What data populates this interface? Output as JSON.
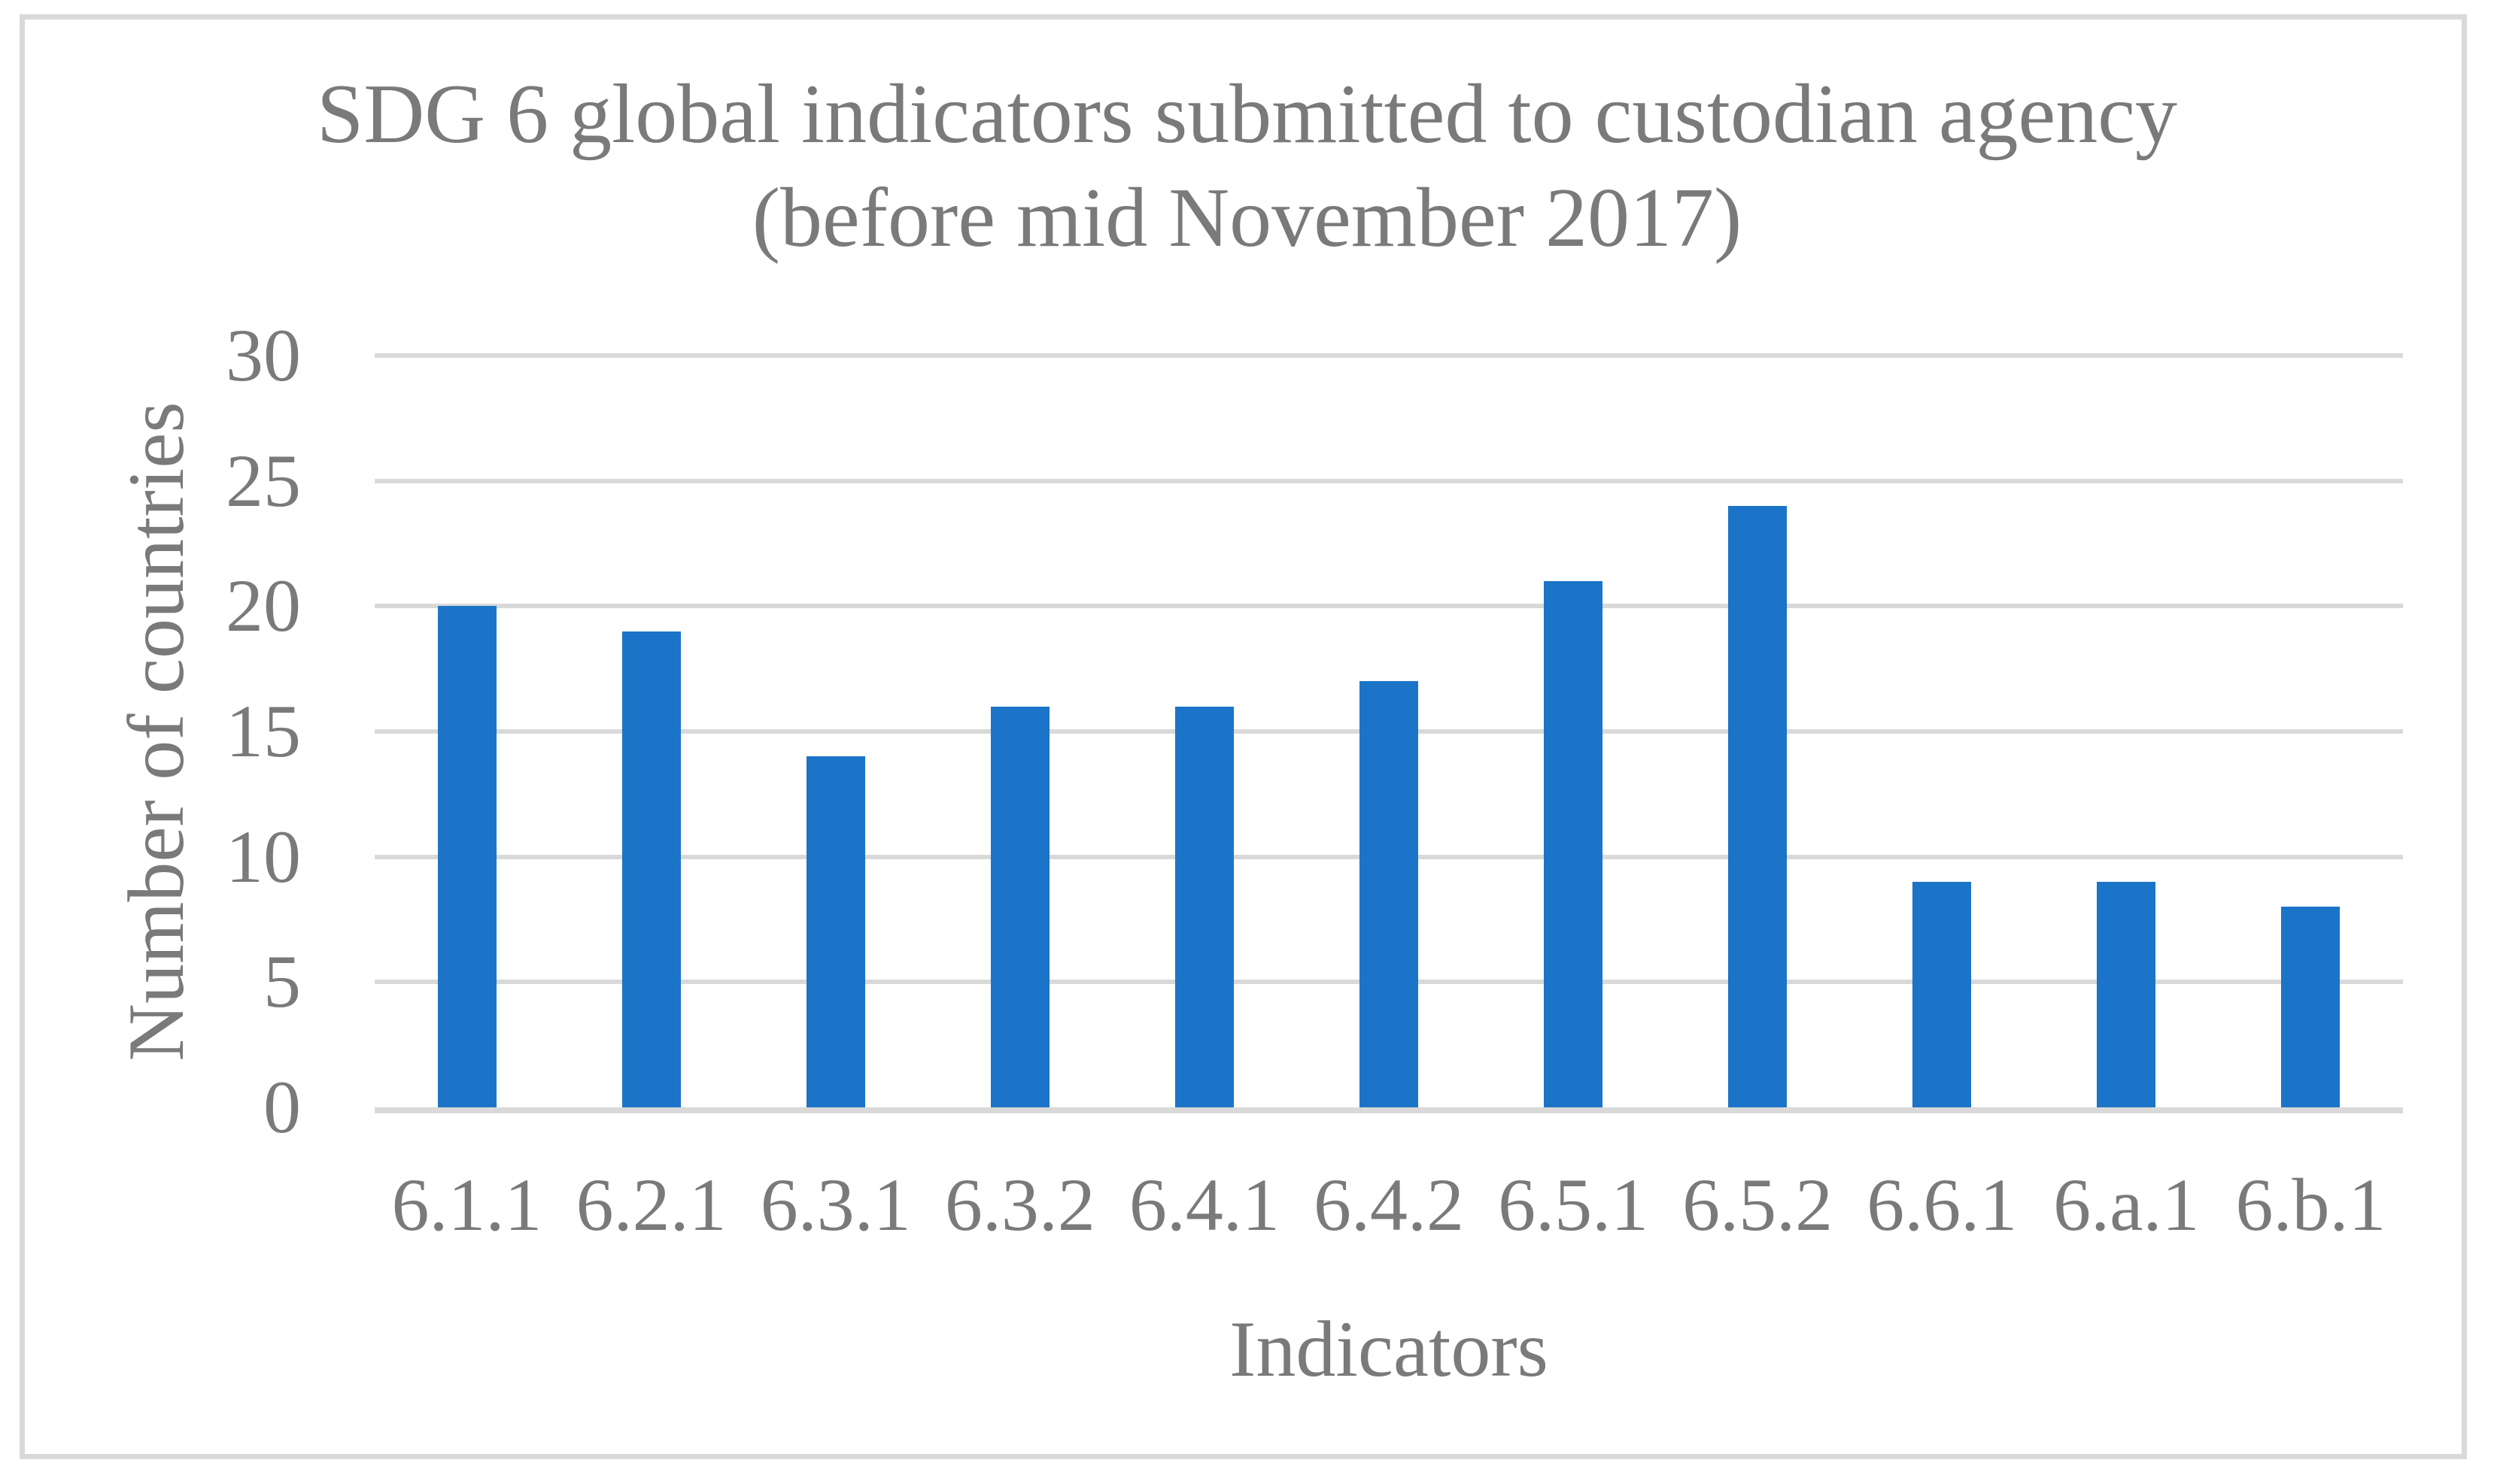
{
  "chart_data": {
    "type": "bar",
    "title": "SDG 6 global indicators submitted to custodian agency (before mid November 2017)",
    "title_lines": [
      "SDG 6 global indicators submitted to custodian agency",
      "(before mid November 2017)"
    ],
    "categories": [
      "6.1.1",
      "6.2.1",
      "6.3.1",
      "6.3.2",
      "6.4.1",
      "6.4.2",
      "6.5.1",
      "6.5.2",
      "6.6.1",
      "6.a.1",
      "6.b.1"
    ],
    "values": [
      20,
      19,
      14,
      16,
      16,
      17,
      21,
      24,
      9,
      9,
      8
    ],
    "xlabel": "Indicators",
    "ylabel": "Number of countries",
    "ylim": [
      0,
      30
    ],
    "yticks": [
      0,
      5,
      10,
      15,
      20,
      25,
      30
    ],
    "grid": "horizontal",
    "legend_position": "none",
    "colors": {
      "bar": "#1B74C8",
      "gridline": "#D9D9D9",
      "axis_line": "#D9D9D9",
      "frame_border": "#D9D9D9",
      "text": "#7A7A7A"
    }
  }
}
